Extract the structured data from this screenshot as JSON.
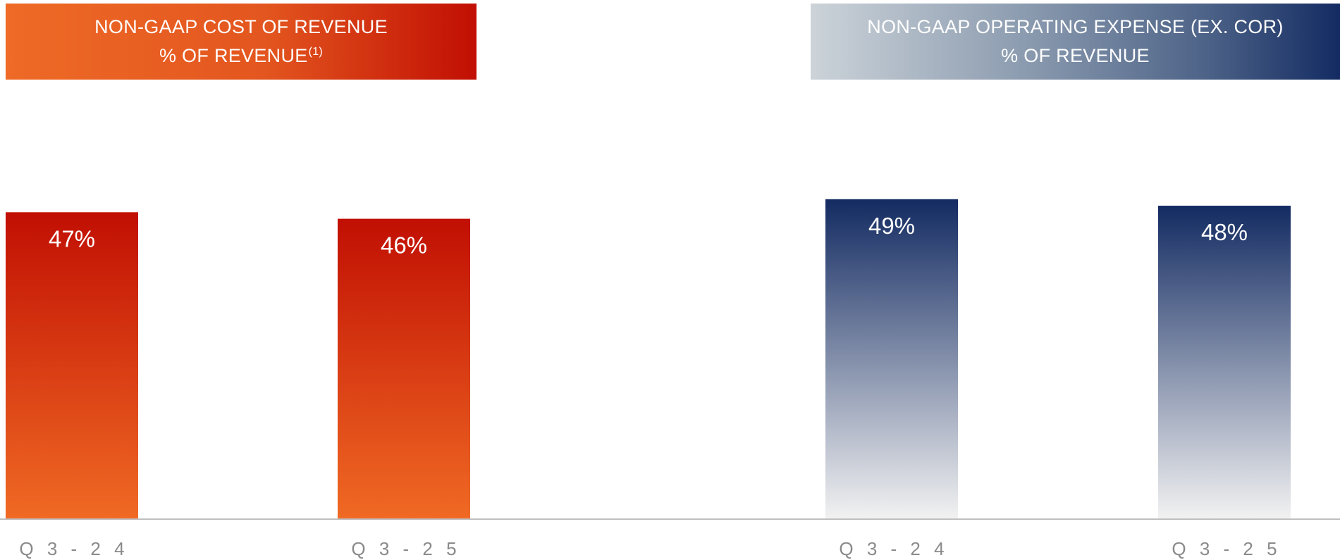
{
  "chart_data": [
    {
      "type": "bar",
      "title_line1": "NON-GAAP COST OF REVENUE",
      "title_line2": "% OF REVENUE",
      "title_footnote": "(1)",
      "categories": [
        "Q3-24",
        "Q3-25"
      ],
      "tick_labels": [
        "Q 3 - 2 4",
        "Q 3 - 2 5"
      ],
      "series": [
        {
          "values": [
            47,
            46
          ],
          "labels": [
            "47%",
            "46%"
          ]
        }
      ],
      "ylim": [
        0,
        60
      ],
      "grid": false,
      "colors": {
        "top": "#c10f03",
        "bottom": "#f06a24"
      }
    },
    {
      "type": "bar",
      "title_line1": "NON-GAAP OPERATING EXPENSE (EX. COR)",
      "title_line2": "% OF REVENUE",
      "categories": [
        "Q3-24",
        "Q3-25"
      ],
      "tick_labels": [
        "Q 3 - 2 4",
        "Q 3 - 2 5"
      ],
      "series": [
        {
          "values": [
            49,
            48
          ],
          "labels": [
            "49%",
            "48%"
          ]
        }
      ],
      "ylim": [
        0,
        60
      ],
      "grid": false,
      "colors": {
        "top": "#132b62",
        "bottom": "#f2f2f2"
      }
    }
  ],
  "axis_color": "#bfbfbf"
}
